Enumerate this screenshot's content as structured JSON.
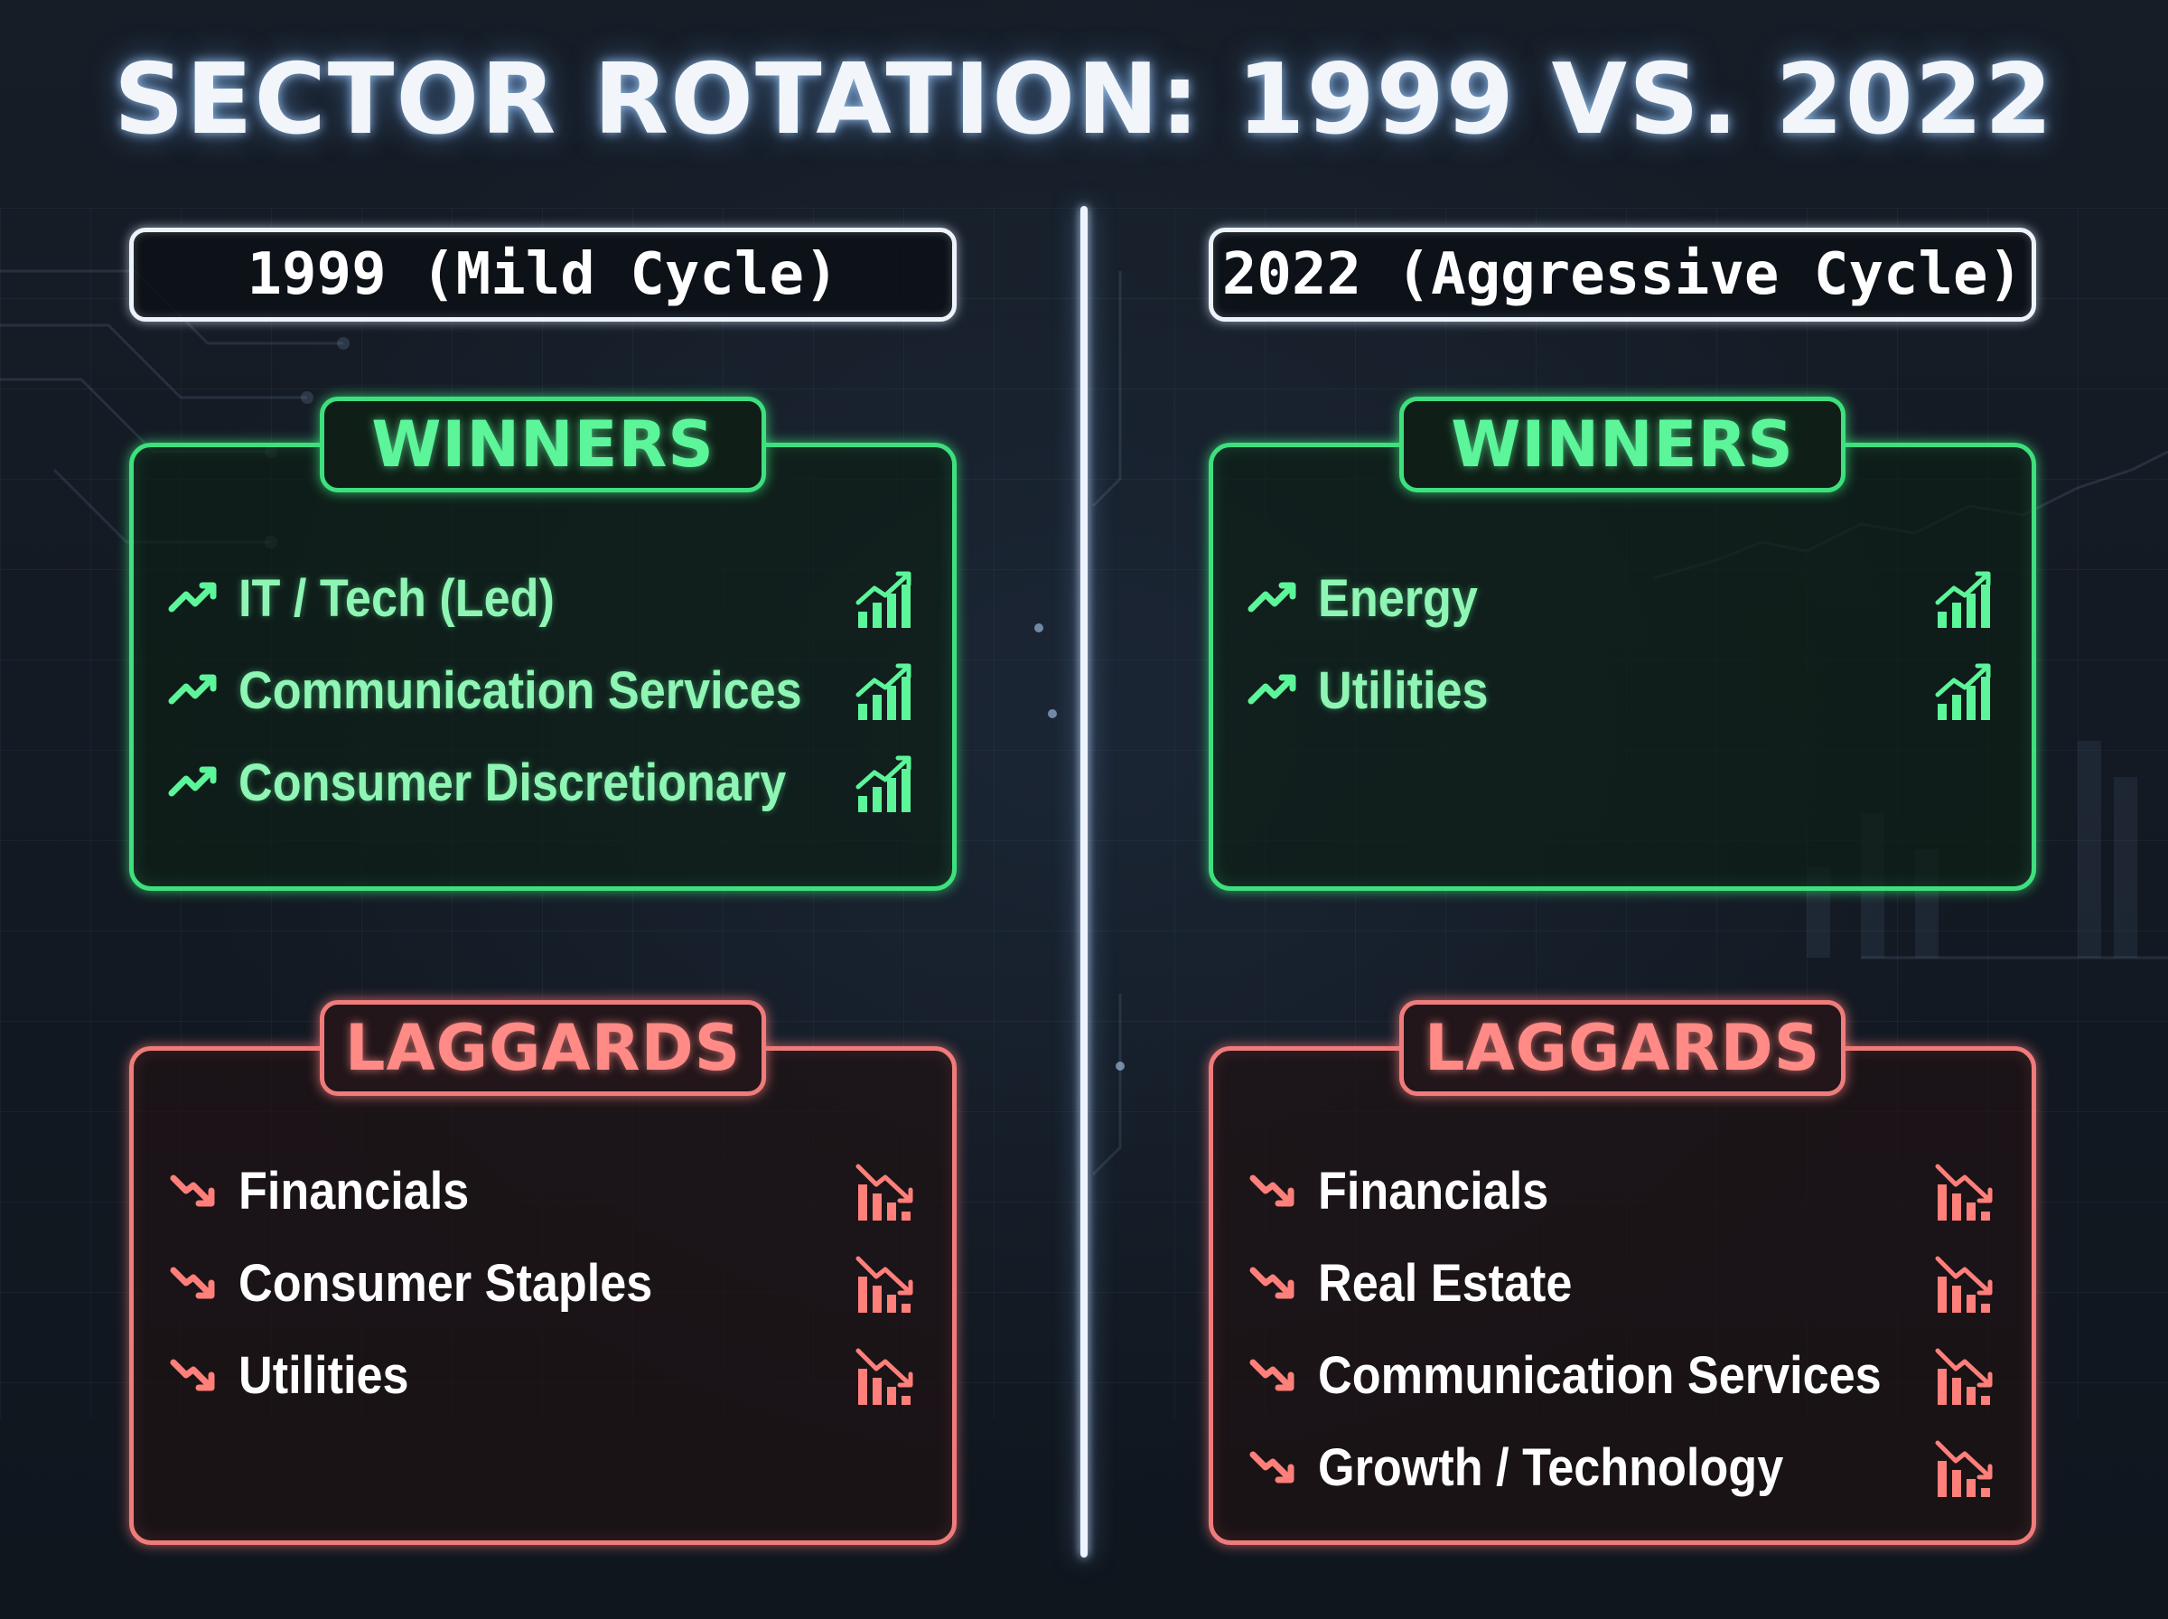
{
  "title": "SECTOR ROTATION: 1999 VS. 2022",
  "colors": {
    "background": "#121821",
    "winner_accent": "#3ee07e",
    "laggard_accent": "#f07b7b",
    "divider": "#eef4ff"
  },
  "left": {
    "header": "1999 (Mild Cycle)",
    "winners": {
      "tag": "WINNERS",
      "icon": "trend-up-icon",
      "items": [
        "IT / Tech (Led)",
        "Communication Services",
        "Consumer Discretionary"
      ]
    },
    "laggards": {
      "tag": "LAGGARDS",
      "icon": "trend-down-icon",
      "items": [
        "Financials",
        "Consumer Staples",
        "Utilities"
      ]
    }
  },
  "right": {
    "header": "2022 (Aggressive Cycle)",
    "winners": {
      "tag": "WINNERS",
      "icon": "trend-up-icon",
      "items": [
        "Energy",
        "Utilities"
      ]
    },
    "laggards": {
      "tag": "LAGGARDS",
      "icon": "trend-down-icon",
      "items": [
        "Financials",
        "Real Estate",
        "Communication Services",
        "Growth / Technology"
      ]
    }
  }
}
